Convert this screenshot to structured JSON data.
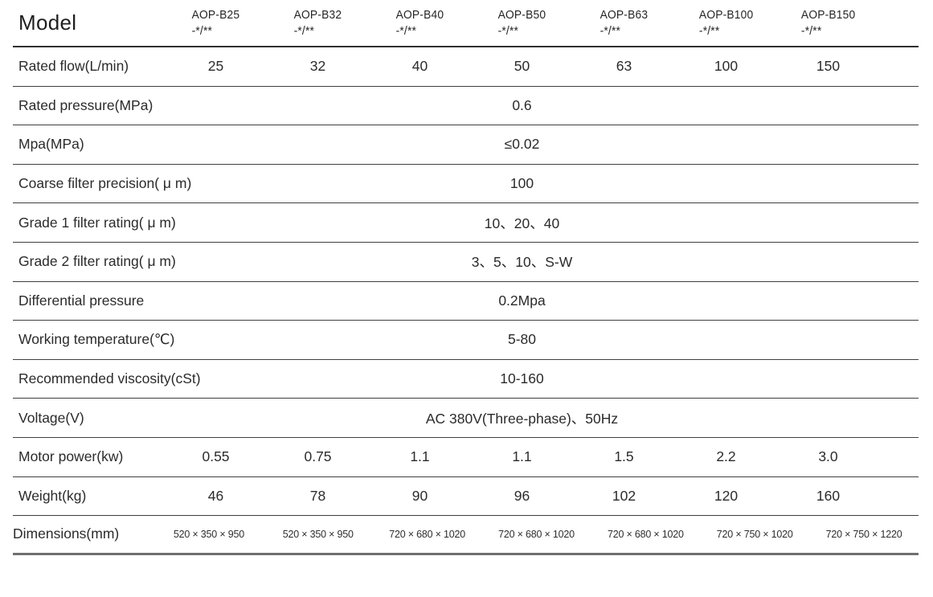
{
  "table": {
    "header": {
      "model_label": "Model",
      "columns": [
        {
          "name": "AOP-B25",
          "suffix": "-*/**"
        },
        {
          "name": "AOP-B32",
          "suffix": "-*/**"
        },
        {
          "name": "AOP-B40",
          "suffix": "-*/**"
        },
        {
          "name": "AOP-B50",
          "suffix": "-*/**"
        },
        {
          "name": "AOP-B63",
          "suffix": "-*/**"
        },
        {
          "name": "AOP-B100",
          "suffix": "-*/**"
        },
        {
          "name": "AOP-B150",
          "suffix": "-*/**"
        }
      ]
    },
    "rows": [
      {
        "label": "Rated flow(L/min)",
        "values": [
          "25",
          "32",
          "40",
          "50",
          "63",
          "100",
          "150"
        ]
      },
      {
        "label": "Rated pressure(MPa)",
        "span_value": "0.6"
      },
      {
        "label": "Mpa(MPa)",
        "span_value": "≤0.02"
      },
      {
        "label": "Coarse filter precision( μ m)",
        "span_value": "100"
      },
      {
        "label": "Grade 1 filter rating( μ m)",
        "span_value": "10、20、40"
      },
      {
        "label": "Grade 2 filter rating( μ m)",
        "span_value": "3、5、10、S-W"
      },
      {
        "label": "Differential pressure",
        "span_value": "0.2Mpa"
      },
      {
        "label": "Working temperature(℃)",
        "span_value": "5-80"
      },
      {
        "label": "Recommended viscosity(cSt)",
        "span_value": "10-160"
      },
      {
        "label": "Voltage(V)",
        "span_value": "AC 380V(Three-phase)、50Hz"
      },
      {
        "label": "Motor power(kw)",
        "values": [
          "0.55",
          "0.75",
          "1.1",
          "1.1",
          "1.5",
          "2.2",
          "3.0"
        ]
      },
      {
        "label": "Weight(kg)",
        "values": [
          "46",
          "78",
          "90",
          "96",
          "102",
          "120",
          "160"
        ]
      },
      {
        "label": "Dimensions(mm)",
        "values": [
          "520 × 350 × 950",
          "520 × 350 × 950",
          "720 × 680 × 1020",
          "720 × 680 × 1020",
          "720 × 680 × 1020",
          "720 × 750 × 1020",
          "720 × 750 × 1220"
        ]
      }
    ]
  },
  "colors": {
    "text": "#2b2b2b",
    "rule": "#3f3f3f",
    "bottom_rule": "#6f6f6f",
    "background": "#ffffff"
  }
}
